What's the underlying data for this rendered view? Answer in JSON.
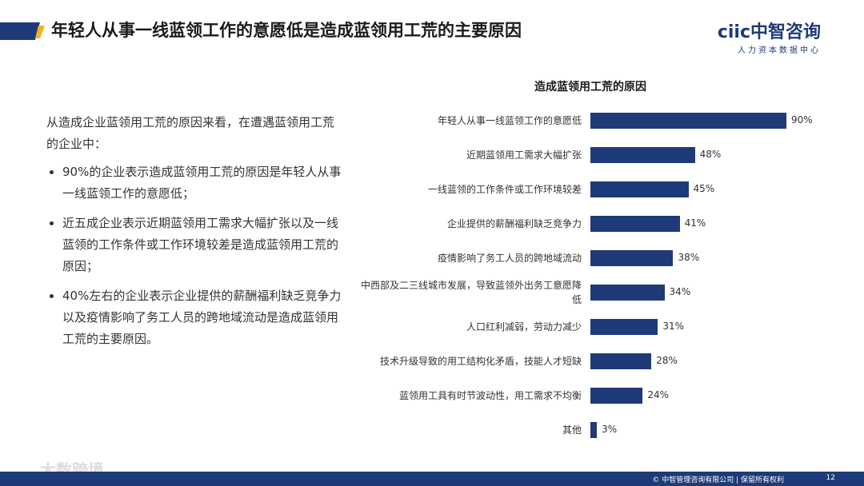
{
  "header": {
    "title": "年轻人从事一线蓝领工作的意愿低是造成蓝领用工荒的主要原因",
    "logo": "ciic中智咨询",
    "logo_subtitle": "人力资本数据中心"
  },
  "body": {
    "intro": "从造成企业蓝领用工荒的原因来看，在遭遇蓝领用工荒的企业中：",
    "bullets": [
      "90%的企业表示造成蓝领用工荒的原因是年轻人从事一线蓝领工作的意愿低；",
      "近五成企业表示近期蓝领用工需求大幅扩张以及一线蓝领的工作条件或工作环境较差是造成蓝领用工荒的原因；",
      "40%左右的企业表示企业提供的薪酬福利缺乏竞争力以及疫情影响了务工人员的跨地域流动是造成蓝领用工荒的主要原因。"
    ]
  },
  "chart_data": {
    "type": "bar",
    "orientation": "horizontal",
    "title": "造成蓝领用工荒的原因",
    "categories": [
      "年轻人从事一线蓝领工作的意愿低",
      "近期蓝领用工需求大幅扩张",
      "一线蓝领的工作条件或工作环境较差",
      "企业提供的薪酬福利缺乏竞争力",
      "疫情影响了务工人员的跨地域流动",
      "中西部及二三线城市发展，导致蓝领外出务工意愿降低",
      "人口红利减弱，劳动力减少",
      "技术升级导致的用工结构化矛盾，技能人才短缺",
      "蓝领用工具有时节波动性，用工需求不均衡",
      "其他"
    ],
    "values": [
      90,
      48,
      45,
      41,
      38,
      34,
      31,
      28,
      24,
      3
    ],
    "value_labels": [
      "90%",
      "48%",
      "45%",
      "41%",
      "38%",
      "34%",
      "31%",
      "28%",
      "24%",
      "3%"
    ],
    "color": "#1e3a78"
  },
  "footer": {
    "copyright": "© 中智管理咨询有限公司 | 保留所有权利",
    "page": 12
  },
  "watermark": "大数跨境"
}
